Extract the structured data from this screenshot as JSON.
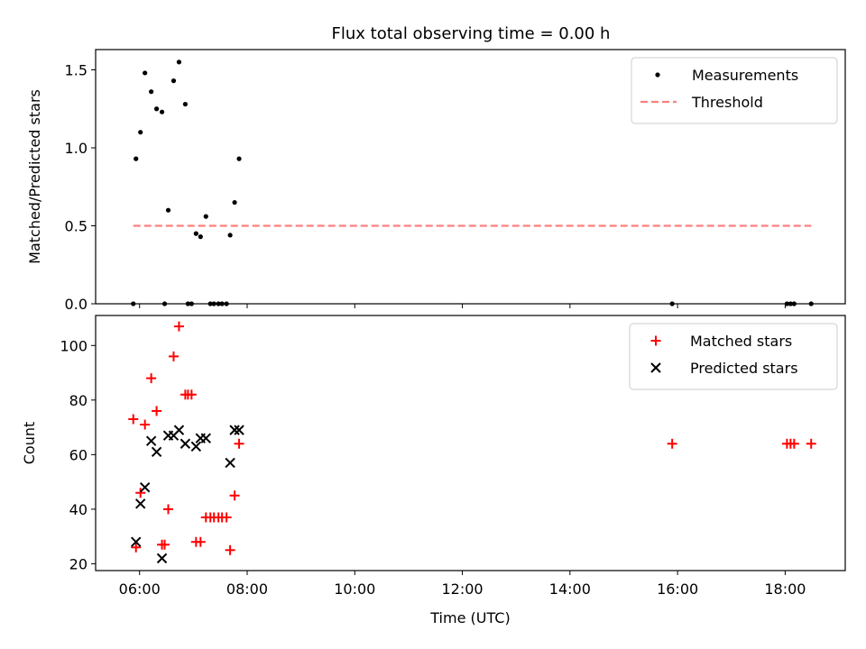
{
  "figure_title": "Flux total observing time = 0.00 h",
  "chart_data": [
    {
      "type": "scatter",
      "ylabel": "Matched/Predicted stars",
      "ylim": [
        0,
        1.63
      ],
      "yticks": [
        0.0,
        0.5,
        1.0,
        1.5
      ],
      "ytick_labels": [
        "0.0",
        "0.5",
        "1.0",
        "1.5"
      ],
      "legend_position": "top-right",
      "series": [
        {
          "name": "Measurements",
          "marker": "dot",
          "color": "#000000",
          "points": [
            [
              "05:53",
              0.0
            ],
            [
              "05:56",
              0.93
            ],
            [
              "06:01",
              1.1
            ],
            [
              "06:06",
              1.48
            ],
            [
              "06:13",
              1.36
            ],
            [
              "06:19",
              1.25
            ],
            [
              "06:25",
              1.23
            ],
            [
              "06:28",
              0.0
            ],
            [
              "06:32",
              0.6
            ],
            [
              "06:38",
              1.43
            ],
            [
              "06:44",
              1.55
            ],
            [
              "06:51",
              1.28
            ],
            [
              "06:54",
              0.0
            ],
            [
              "06:58",
              0.0
            ],
            [
              "07:03",
              0.45
            ],
            [
              "07:08",
              0.43
            ],
            [
              "07:14",
              0.56
            ],
            [
              "07:19",
              0.0
            ],
            [
              "07:23",
              0.0
            ],
            [
              "07:28",
              0.0
            ],
            [
              "07:32",
              0.0
            ],
            [
              "07:37",
              0.0
            ],
            [
              "07:41",
              0.44
            ],
            [
              "07:46",
              0.65
            ],
            [
              "07:51",
              0.93
            ],
            [
              "15:54",
              0.0
            ],
            [
              "18:02",
              0.0
            ],
            [
              "18:06",
              0.0
            ],
            [
              "18:10",
              0.0
            ],
            [
              "18:29",
              0.0
            ]
          ]
        },
        {
          "name": "Threshold",
          "style": "dashed",
          "color": "#ff7f7f",
          "points": [
            [
              "05:53",
              0.5
            ],
            [
              "18:29",
              0.5
            ]
          ]
        }
      ]
    },
    {
      "type": "scatter",
      "xlabel": "Time (UTC)",
      "ylabel": "Count",
      "ylim": [
        17.5,
        111
      ],
      "yticks": [
        20,
        40,
        60,
        80,
        100
      ],
      "ytick_labels": [
        "20",
        "40",
        "60",
        "80",
        "100"
      ],
      "xlim": [
        "05:11",
        "19:07"
      ],
      "xticks": [
        "06:00",
        "08:00",
        "10:00",
        "12:00",
        "14:00",
        "16:00",
        "18:00"
      ],
      "legend_position": "top-right",
      "series": [
        {
          "name": "Matched stars",
          "marker": "plus",
          "color": "#ff0000",
          "points": [
            [
              "05:53",
              73
            ],
            [
              "05:56",
              26
            ],
            [
              "06:01",
              46
            ],
            [
              "06:06",
              71
            ],
            [
              "06:13",
              88
            ],
            [
              "06:19",
              76
            ],
            [
              "06:25",
              27
            ],
            [
              "06:28",
              27
            ],
            [
              "06:32",
              40
            ],
            [
              "06:38",
              96
            ],
            [
              "06:44",
              107
            ],
            [
              "06:51",
              82
            ],
            [
              "06:54",
              82
            ],
            [
              "06:58",
              82
            ],
            [
              "07:03",
              28
            ],
            [
              "07:08",
              28
            ],
            [
              "07:14",
              37
            ],
            [
              "07:19",
              37
            ],
            [
              "07:23",
              37
            ],
            [
              "07:28",
              37
            ],
            [
              "07:32",
              37
            ],
            [
              "07:37",
              37
            ],
            [
              "07:41",
              25
            ],
            [
              "07:46",
              45
            ],
            [
              "07:51",
              64
            ],
            [
              "15:54",
              64
            ],
            [
              "18:02",
              64
            ],
            [
              "18:06",
              64
            ],
            [
              "18:10",
              64
            ],
            [
              "18:29",
              64
            ]
          ]
        },
        {
          "name": "Predicted stars",
          "marker": "x",
          "color": "#000000",
          "points": [
            [
              "05:56",
              28
            ],
            [
              "06:01",
              42
            ],
            [
              "06:06",
              48
            ],
            [
              "06:13",
              65
            ],
            [
              "06:19",
              61
            ],
            [
              "06:25",
              22
            ],
            [
              "06:32",
              67
            ],
            [
              "06:38",
              67
            ],
            [
              "06:44",
              69
            ],
            [
              "06:51",
              64
            ],
            [
              "07:03",
              63
            ],
            [
              "07:08",
              66
            ],
            [
              "07:14",
              66
            ],
            [
              "07:41",
              57
            ],
            [
              "07:46",
              69
            ],
            [
              "07:51",
              69
            ]
          ]
        }
      ]
    }
  ]
}
